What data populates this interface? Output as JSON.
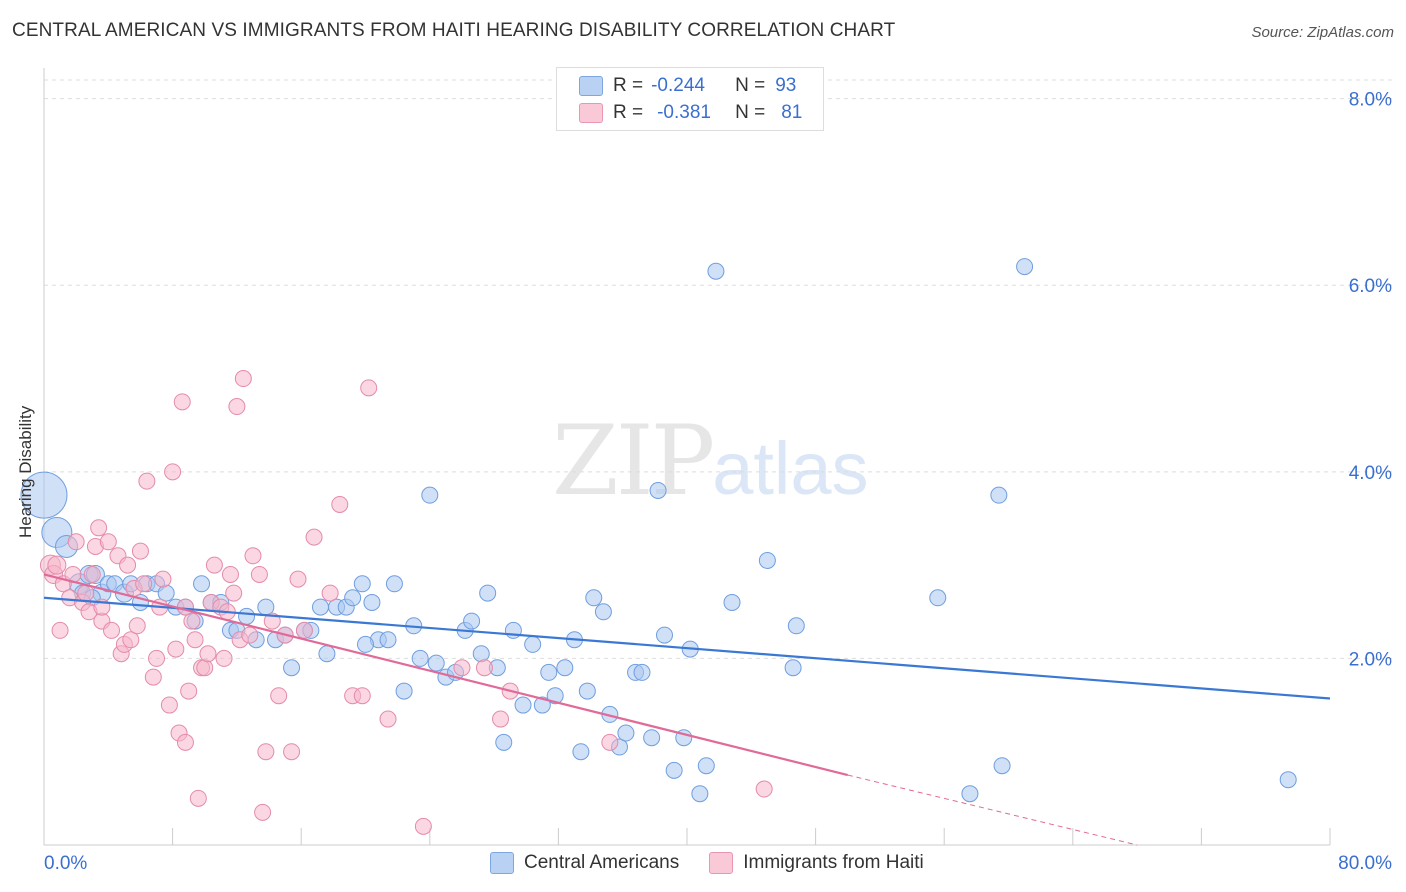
{
  "title": "CENTRAL AMERICAN VS IMMIGRANTS FROM HAITI HEARING DISABILITY CORRELATION CHART",
  "source": "Source: ZipAtlas.com",
  "watermark": {
    "zip": "ZIP",
    "atlas": "atlas"
  },
  "legend": {
    "row1": {
      "r_label": "R =",
      "r_value": "-0.244",
      "n_label": "N =",
      "n_value": "93"
    },
    "row2": {
      "r_label": "R =",
      "r_value": "-0.381",
      "n_label": "N =",
      "n_value": "81"
    }
  },
  "bottom_legend": {
    "series1": "Central Americans",
    "series2": "Immigrants from Haiti"
  },
  "colors": {
    "blue": "#3a78d4",
    "blue_fill": "#a9c6f0",
    "pink": "#e06a98",
    "pink_fill": "#f5b6cb",
    "axis_text": "#3a6fd0"
  },
  "chart_data": {
    "type": "scatter",
    "title": "CENTRAL AMERICAN VS IMMIGRANTS FROM HAITI HEARING DISABILITY CORRELATION CHART",
    "xlabel": "",
    "ylabel": "Hearing Disability",
    "xlim": [
      0,
      80
    ],
    "ylim": [
      0,
      8.0
    ],
    "x_tick_labels": [
      "0.0%",
      "80.0%"
    ],
    "y_tick_labels": [
      "2.0%",
      "4.0%",
      "6.0%",
      "8.0%"
    ],
    "y_ticks": [
      2,
      4,
      6,
      8
    ],
    "grid": "horizontal dashed",
    "legend_position": "top-center",
    "series": [
      {
        "name": "Central Americans",
        "r": -0.244,
        "n": 93,
        "trend": {
          "x": [
            0,
            80
          ],
          "y": [
            2.65,
            1.57
          ]
        },
        "points": [
          [
            0,
            3.75,
            22
          ],
          [
            0.8,
            3.35,
            14
          ],
          [
            1.4,
            3.2,
            10
          ],
          [
            2.2,
            2.8,
            9
          ],
          [
            2.8,
            2.9,
            8
          ],
          [
            3.2,
            2.9,
            8
          ],
          [
            3.6,
            2.7,
            8
          ],
          [
            4.0,
            2.8,
            7
          ],
          [
            4.4,
            2.8,
            7
          ],
          [
            5.0,
            2.7,
            8
          ],
          [
            5.4,
            2.8,
            7
          ],
          [
            6.0,
            2.6,
            7
          ],
          [
            6.4,
            2.8,
            7
          ],
          [
            7.0,
            2.8,
            7
          ],
          [
            7.6,
            2.7,
            7
          ],
          [
            8.2,
            2.55,
            7
          ],
          [
            8.8,
            2.55,
            7
          ],
          [
            9.4,
            2.4,
            7
          ],
          [
            9.8,
            2.8,
            7
          ],
          [
            10.4,
            2.6,
            7
          ],
          [
            11.0,
            2.6,
            7
          ],
          [
            11.6,
            2.3,
            7
          ],
          [
            12.0,
            2.3,
            7
          ],
          [
            12.6,
            2.45,
            7
          ],
          [
            13.2,
            2.2,
            7
          ],
          [
            13.8,
            2.55,
            7
          ],
          [
            14.4,
            2.2,
            7
          ],
          [
            15.0,
            2.25,
            7
          ],
          [
            15.4,
            1.9,
            7
          ],
          [
            16.2,
            2.3,
            7
          ],
          [
            16.6,
            2.3,
            7
          ],
          [
            17.2,
            2.55,
            7
          ],
          [
            17.6,
            2.05,
            7
          ],
          [
            18.2,
            2.55,
            7
          ],
          [
            18.8,
            2.55,
            7
          ],
          [
            19.2,
            2.65,
            7
          ],
          [
            19.8,
            2.8,
            7
          ],
          [
            20.4,
            2.6,
            7
          ],
          [
            20.8,
            2.2,
            7
          ],
          [
            21.4,
            2.2,
            7
          ],
          [
            21.8,
            2.8,
            7
          ],
          [
            22.4,
            1.65,
            7
          ],
          [
            23.0,
            2.35,
            7
          ],
          [
            23.4,
            2.0,
            7
          ],
          [
            24.0,
            3.75,
            7
          ],
          [
            24.4,
            1.95,
            7
          ],
          [
            25.0,
            1.8,
            7
          ],
          [
            25.6,
            1.85,
            7
          ],
          [
            26.2,
            2.3,
            7
          ],
          [
            26.6,
            2.4,
            7
          ],
          [
            27.2,
            2.05,
            7
          ],
          [
            27.6,
            2.7,
            7
          ],
          [
            28.2,
            1.9,
            7
          ],
          [
            28.6,
            1.1,
            7
          ],
          [
            29.2,
            2.3,
            7
          ],
          [
            29.8,
            1.5,
            7
          ],
          [
            30.4,
            2.15,
            7
          ],
          [
            31.0,
            1.5,
            7
          ],
          [
            31.4,
            1.85,
            7
          ],
          [
            31.8,
            1.6,
            7
          ],
          [
            32.4,
            1.9,
            7
          ],
          [
            33.0,
            2.2,
            7
          ],
          [
            33.4,
            1.0,
            7
          ],
          [
            33.8,
            1.65,
            7
          ],
          [
            34.2,
            2.65,
            7
          ],
          [
            34.8,
            2.5,
            7
          ],
          [
            35.2,
            1.4,
            7
          ],
          [
            35.8,
            1.05,
            7
          ],
          [
            36.2,
            1.2,
            7
          ],
          [
            36.8,
            1.85,
            7
          ],
          [
            37.2,
            1.85,
            7
          ],
          [
            37.8,
            1.15,
            7
          ],
          [
            38.2,
            3.8,
            7
          ],
          [
            38.6,
            2.25,
            7
          ],
          [
            39.2,
            0.8,
            7
          ],
          [
            39.8,
            1.15,
            7
          ],
          [
            40.2,
            2.1,
            7
          ],
          [
            40.8,
            0.55,
            7
          ],
          [
            41.2,
            0.85,
            7
          ],
          [
            41.8,
            6.15,
            7
          ],
          [
            42.8,
            2.6,
            7
          ],
          [
            45.0,
            3.05,
            7
          ],
          [
            46.6,
            1.9,
            7
          ],
          [
            46.8,
            2.35,
            7
          ],
          [
            55.6,
            2.65,
            7
          ],
          [
            57.6,
            0.55,
            7
          ],
          [
            59.4,
            3.75,
            7
          ],
          [
            59.6,
            0.85,
            7
          ],
          [
            61.0,
            6.2,
            7
          ],
          [
            77.4,
            0.7,
            7
          ],
          [
            2.4,
            2.7,
            7
          ],
          [
            3.0,
            2.65,
            7
          ],
          [
            20.0,
            2.15,
            7
          ]
        ]
      },
      {
        "name": "Immigrants from Haiti",
        "r": -0.381,
        "n": 81,
        "trend": {
          "x": [
            0,
            50
          ],
          "y": [
            2.9,
            0.75
          ],
          "dash_x": [
            50,
            68
          ],
          "dash_y": [
            0.75,
            0.0
          ]
        },
        "points": [
          [
            0.4,
            3.0,
            9
          ],
          [
            0.6,
            2.9,
            8
          ],
          [
            0.8,
            3.0,
            8
          ],
          [
            1.0,
            2.3,
            7
          ],
          [
            1.2,
            2.8,
            7
          ],
          [
            1.6,
            2.65,
            7
          ],
          [
            1.8,
            2.9,
            7
          ],
          [
            2.0,
            3.25,
            7
          ],
          [
            2.4,
            2.6,
            7
          ],
          [
            2.6,
            2.7,
            7
          ],
          [
            2.8,
            2.5,
            7
          ],
          [
            3.0,
            2.9,
            7
          ],
          [
            3.2,
            3.2,
            7
          ],
          [
            3.4,
            3.4,
            7
          ],
          [
            3.6,
            2.4,
            7
          ],
          [
            4.0,
            3.25,
            7
          ],
          [
            4.2,
            2.3,
            7
          ],
          [
            4.6,
            3.1,
            7
          ],
          [
            4.8,
            2.05,
            7
          ],
          [
            5.0,
            2.15,
            7
          ],
          [
            5.2,
            3.0,
            7
          ],
          [
            5.4,
            2.2,
            7
          ],
          [
            5.6,
            2.75,
            7
          ],
          [
            5.8,
            2.35,
            7
          ],
          [
            6.0,
            3.15,
            7
          ],
          [
            6.2,
            2.8,
            7
          ],
          [
            6.4,
            3.9,
            7
          ],
          [
            6.8,
            1.8,
            7
          ],
          [
            7.0,
            2.0,
            7
          ],
          [
            7.2,
            2.55,
            7
          ],
          [
            7.4,
            2.85,
            7
          ],
          [
            7.8,
            1.5,
            7
          ],
          [
            8.0,
            4.0,
            7
          ],
          [
            8.2,
            2.1,
            7
          ],
          [
            8.4,
            1.2,
            7
          ],
          [
            8.6,
            4.75,
            7
          ],
          [
            8.8,
            1.1,
            7
          ],
          [
            9.0,
            1.65,
            7
          ],
          [
            9.2,
            2.4,
            7
          ],
          [
            9.4,
            2.2,
            7
          ],
          [
            9.6,
            0.5,
            7
          ],
          [
            9.8,
            1.9,
            7
          ],
          [
            10.0,
            1.9,
            7
          ],
          [
            10.2,
            2.05,
            7
          ],
          [
            10.4,
            2.6,
            7
          ],
          [
            10.6,
            3.0,
            7
          ],
          [
            11.0,
            2.55,
            7
          ],
          [
            11.2,
            2.0,
            7
          ],
          [
            11.6,
            2.9,
            7
          ],
          [
            11.8,
            2.7,
            7
          ],
          [
            12.0,
            4.7,
            7
          ],
          [
            12.2,
            2.2,
            7
          ],
          [
            12.4,
            5.0,
            7
          ],
          [
            12.8,
            2.25,
            7
          ],
          [
            13.0,
            3.1,
            7
          ],
          [
            13.4,
            2.9,
            7
          ],
          [
            13.6,
            0.35,
            7
          ],
          [
            13.8,
            1.0,
            7
          ],
          [
            14.2,
            2.4,
            7
          ],
          [
            14.6,
            1.6,
            7
          ],
          [
            15.0,
            2.25,
            7
          ],
          [
            15.4,
            1.0,
            7
          ],
          [
            15.8,
            2.85,
            7
          ],
          [
            16.2,
            2.3,
            7
          ],
          [
            16.8,
            3.3,
            7
          ],
          [
            17.8,
            2.7,
            7
          ],
          [
            18.4,
            3.65,
            7
          ],
          [
            19.2,
            1.6,
            7
          ],
          [
            19.8,
            1.6,
            7
          ],
          [
            20.2,
            4.9,
            7
          ],
          [
            21.4,
            1.35,
            7
          ],
          [
            23.6,
            0.2,
            7
          ],
          [
            26.0,
            1.9,
            7
          ],
          [
            27.4,
            1.9,
            7
          ],
          [
            28.4,
            1.35,
            7
          ],
          [
            29.0,
            1.65,
            7
          ],
          [
            35.2,
            1.1,
            7
          ],
          [
            44.8,
            0.6,
            7
          ],
          [
            3.6,
            2.55,
            7
          ],
          [
            8.8,
            2.55,
            7
          ],
          [
            11.4,
            2.5,
            7
          ]
        ]
      }
    ]
  }
}
